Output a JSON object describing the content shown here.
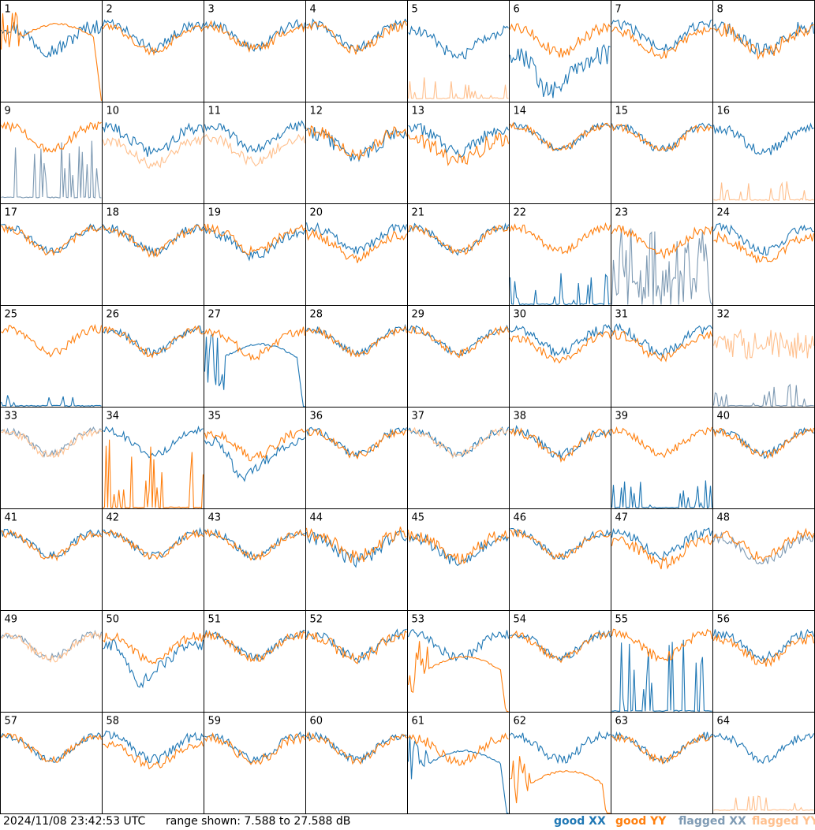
{
  "colors": {
    "good_xx": "#1f77b4",
    "good_yy": "#ff7f0e",
    "flagged_xx": "#7f9bb4",
    "flagged_yy": "#ffc08e",
    "frame": "#000000",
    "background": "#ffffff"
  },
  "footer": {
    "timestamp": "2024/11/08 23:42:53 UTC",
    "range_text": "range shown: 7.588 to 27.588 dB",
    "legend": {
      "good_xx": "good XX",
      "good_yy": "good YY",
      "flagged_xx": "flagged XX",
      "flagged_yy": "flagged YY"
    }
  },
  "chart_data": {
    "type": "line",
    "layout": "small-multiples 8x8",
    "ylim": [
      7.588,
      27.588
    ],
    "yunit": "dB",
    "series_names": [
      "good XX",
      "good YY",
      "flagged XX",
      "flagged YY"
    ],
    "panels": [
      {
        "label": "1",
        "xx": {
          "state": "good",
          "mode": "normal",
          "level": 22.5,
          "noise": 1.5
        },
        "yy": {
          "state": "good",
          "mode": "rolloff",
          "level": 20.5,
          "noise": 0.4
        }
      },
      {
        "label": "2",
        "xx": {
          "state": "good",
          "mode": "normal",
          "level": 23.0,
          "noise": 1.0
        },
        "yy": {
          "state": "good",
          "mode": "normal",
          "level": 22.3,
          "noise": 0.8
        }
      },
      {
        "label": "3",
        "xx": {
          "state": "good",
          "mode": "normal",
          "level": 23.0,
          "noise": 1.0
        },
        "yy": {
          "state": "good",
          "mode": "normal",
          "level": 22.6,
          "noise": 1.0
        }
      },
      {
        "label": "4",
        "xx": {
          "state": "good",
          "mode": "normal",
          "level": 23.0,
          "noise": 1.0
        },
        "yy": {
          "state": "good",
          "mode": "normal",
          "level": 22.6,
          "noise": 1.0
        }
      },
      {
        "label": "5",
        "xx": {
          "state": "good",
          "mode": "normal",
          "level": 21.5,
          "noise": 1.2
        },
        "yy": {
          "state": "flagged",
          "mode": "spikes",
          "level": 8.5,
          "noise": 2.0
        }
      },
      {
        "label": "6",
        "xx": {
          "state": "good",
          "mode": "dip",
          "level": 17.0,
          "noise": 2.0
        },
        "yy": {
          "state": "good",
          "mode": "normal",
          "level": 22.0,
          "noise": 1.2
        }
      },
      {
        "label": "7",
        "xx": {
          "state": "good",
          "mode": "normal",
          "level": 23.0,
          "noise": 1.0
        },
        "yy": {
          "state": "good",
          "mode": "normal",
          "level": 21.5,
          "noise": 1.0
        }
      },
      {
        "label": "8",
        "xx": {
          "state": "good",
          "mode": "normal",
          "level": 22.5,
          "noise": 1.4
        },
        "yy": {
          "state": "good",
          "mode": "normal",
          "level": 22.0,
          "noise": 1.4
        }
      },
      {
        "label": "9",
        "xx": {
          "state": "flagged",
          "mode": "spikes",
          "level": 9.0,
          "noise": 6.0
        },
        "yy": {
          "state": "good",
          "mode": "normal",
          "level": 23.0,
          "noise": 0.9
        }
      },
      {
        "label": "10",
        "xx": {
          "state": "good",
          "mode": "normal",
          "level": 22.5,
          "noise": 1.2
        },
        "yy": {
          "state": "flagged",
          "mode": "normal",
          "level": 20.0,
          "noise": 1.0
        }
      },
      {
        "label": "11",
        "xx": {
          "state": "good",
          "mode": "normal",
          "level": 23.0,
          "noise": 1.0
        },
        "yy": {
          "state": "flagged",
          "mode": "normal",
          "level": 20.5,
          "noise": 1.0
        }
      },
      {
        "label": "12",
        "xx": {
          "state": "good",
          "mode": "normal",
          "level": 21.5,
          "noise": 1.4
        },
        "yy": {
          "state": "good",
          "mode": "normal",
          "level": 22.0,
          "noise": 1.2
        }
      },
      {
        "label": "13",
        "xx": {
          "state": "good",
          "mode": "normal",
          "level": 22.5,
          "noise": 1.2
        },
        "yy": {
          "state": "good",
          "mode": "normal",
          "level": 20.5,
          "noise": 1.6
        }
      },
      {
        "label": "14",
        "xx": {
          "state": "good",
          "mode": "normal",
          "level": 23.0,
          "noise": 0.7
        },
        "yy": {
          "state": "good",
          "mode": "normal",
          "level": 23.0,
          "noise": 0.7
        }
      },
      {
        "label": "15",
        "xx": {
          "state": "good",
          "mode": "normal",
          "level": 23.0,
          "noise": 0.8
        },
        "yy": {
          "state": "good",
          "mode": "normal",
          "level": 22.8,
          "noise": 0.8
        }
      },
      {
        "label": "16",
        "xx": {
          "state": "good",
          "mode": "normal",
          "level": 22.5,
          "noise": 1.0
        },
        "yy": {
          "state": "flagged",
          "mode": "spikes",
          "level": 8.5,
          "noise": 2.0
        }
      },
      {
        "label": "17",
        "xx": {
          "state": "good",
          "mode": "normal",
          "level": 23.0,
          "noise": 0.8
        },
        "yy": {
          "state": "good",
          "mode": "normal",
          "level": 22.8,
          "noise": 0.8
        }
      },
      {
        "label": "18",
        "xx": {
          "state": "good",
          "mode": "normal",
          "level": 22.8,
          "noise": 1.0
        },
        "yy": {
          "state": "good",
          "mode": "normal",
          "level": 22.6,
          "noise": 1.0
        }
      },
      {
        "label": "19",
        "xx": {
          "state": "good",
          "mode": "normal",
          "level": 22.0,
          "noise": 1.0
        },
        "yy": {
          "state": "good",
          "mode": "normal",
          "level": 22.8,
          "noise": 1.0
        }
      },
      {
        "label": "20",
        "xx": {
          "state": "good",
          "mode": "normal",
          "level": 23.0,
          "noise": 1.0
        },
        "yy": {
          "state": "good",
          "mode": "normal",
          "level": 21.5,
          "noise": 1.0
        }
      },
      {
        "label": "21",
        "xx": {
          "state": "good",
          "mode": "normal",
          "level": 23.0,
          "noise": 0.8
        },
        "yy": {
          "state": "good",
          "mode": "normal",
          "level": 22.8,
          "noise": 0.8
        }
      },
      {
        "label": "22",
        "xx": {
          "state": "good",
          "mode": "spikes",
          "level": 8.0,
          "noise": 3.0
        },
        "yy": {
          "state": "good",
          "mode": "normal",
          "level": 23.0,
          "noise": 0.9
        }
      },
      {
        "label": "23",
        "xx": {
          "state": "flagged",
          "mode": "noisy",
          "level": 14.0,
          "noise": 9.0
        },
        "yy": {
          "state": "good",
          "mode": "normal",
          "level": 22.5,
          "noise": 1.0
        }
      },
      {
        "label": "24",
        "xx": {
          "state": "good",
          "mode": "normal",
          "level": 23.0,
          "noise": 1.0
        },
        "yy": {
          "state": "good",
          "mode": "normal",
          "level": 21.0,
          "noise": 1.0
        }
      },
      {
        "label": "25",
        "xx": {
          "state": "good",
          "mode": "spikes",
          "level": 8.0,
          "noise": 1.0
        },
        "yy": {
          "state": "good",
          "mode": "normal",
          "level": 23.0,
          "noise": 0.8
        }
      },
      {
        "label": "26",
        "xx": {
          "state": "good",
          "mode": "normal",
          "level": 23.0,
          "noise": 0.8
        },
        "yy": {
          "state": "good",
          "mode": "normal",
          "level": 22.8,
          "noise": 0.8
        }
      },
      {
        "label": "27",
        "xx": {
          "state": "good",
          "mode": "rolloff",
          "level": 17.5,
          "noise": 0.4
        },
        "yy": {
          "state": "good",
          "mode": "normal",
          "level": 22.5,
          "noise": 1.0
        }
      },
      {
        "label": "28",
        "xx": {
          "state": "good",
          "mode": "normal",
          "level": 23.0,
          "noise": 0.8
        },
        "yy": {
          "state": "good",
          "mode": "normal",
          "level": 22.8,
          "noise": 0.8
        }
      },
      {
        "label": "29",
        "xx": {
          "state": "good",
          "mode": "normal",
          "level": 23.0,
          "noise": 0.8
        },
        "yy": {
          "state": "good",
          "mode": "normal",
          "level": 22.8,
          "noise": 0.8
        }
      },
      {
        "label": "30",
        "xx": {
          "state": "good",
          "mode": "normal",
          "level": 23.0,
          "noise": 1.0
        },
        "yy": {
          "state": "good",
          "mode": "normal",
          "level": 21.5,
          "noise": 1.0
        }
      },
      {
        "label": "31",
        "xx": {
          "state": "good",
          "mode": "normal",
          "level": 23.0,
          "noise": 1.0
        },
        "yy": {
          "state": "good",
          "mode": "normal",
          "level": 21.8,
          "noise": 1.0
        }
      },
      {
        "label": "32",
        "xx": {
          "state": "flagged",
          "mode": "spikes",
          "level": 8.0,
          "noise": 2.0
        },
        "yy": {
          "state": "flagged",
          "mode": "noisy",
          "level": 20.0,
          "noise": 3.0
        }
      },
      {
        "label": "33",
        "xx": {
          "state": "flagged",
          "mode": "normal",
          "level": 23.0,
          "noise": 0.8
        },
        "yy": {
          "state": "flagged",
          "mode": "normal",
          "level": 22.8,
          "noise": 0.8
        }
      },
      {
        "label": "34",
        "xx": {
          "state": "good",
          "mode": "normal",
          "level": 23.0,
          "noise": 0.8
        },
        "yy": {
          "state": "good",
          "mode": "spikes",
          "level": 8.0,
          "noise": 8.0
        }
      },
      {
        "label": "35",
        "xx": {
          "state": "good",
          "mode": "dip",
          "level": 21.0,
          "noise": 1.0
        },
        "yy": {
          "state": "good",
          "mode": "normal",
          "level": 22.5,
          "noise": 1.0
        }
      },
      {
        "label": "36",
        "xx": {
          "state": "good",
          "mode": "normal",
          "level": 23.0,
          "noise": 0.8
        },
        "yy": {
          "state": "good",
          "mode": "normal",
          "level": 22.8,
          "noise": 0.8
        }
      },
      {
        "label": "37",
        "xx": {
          "state": "good",
          "mode": "normal",
          "level": 23.0,
          "noise": 0.8
        },
        "yy": {
          "state": "flagged",
          "mode": "normal",
          "level": 22.8,
          "noise": 0.8
        }
      },
      {
        "label": "38",
        "xx": {
          "state": "good",
          "mode": "normal",
          "level": 23.0,
          "noise": 1.0
        },
        "yy": {
          "state": "good",
          "mode": "normal",
          "level": 22.6,
          "noise": 1.0
        }
      },
      {
        "label": "39",
        "xx": {
          "state": "good",
          "mode": "spikes",
          "level": 8.0,
          "noise": 3.0
        },
        "yy": {
          "state": "good",
          "mode": "normal",
          "level": 23.0,
          "noise": 0.9
        }
      },
      {
        "label": "40",
        "xx": {
          "state": "good",
          "mode": "normal",
          "level": 23.0,
          "noise": 0.8
        },
        "yy": {
          "state": "good",
          "mode": "normal",
          "level": 22.8,
          "noise": 0.8
        }
      },
      {
        "label": "41",
        "xx": {
          "state": "good",
          "mode": "normal",
          "level": 23.0,
          "noise": 0.8
        },
        "yy": {
          "state": "good",
          "mode": "normal",
          "level": 22.8,
          "noise": 0.8
        }
      },
      {
        "label": "42",
        "xx": {
          "state": "good",
          "mode": "normal",
          "level": 23.0,
          "noise": 0.8
        },
        "yy": {
          "state": "good",
          "mode": "normal",
          "level": 22.8,
          "noise": 0.8
        }
      },
      {
        "label": "43",
        "xx": {
          "state": "good",
          "mode": "normal",
          "level": 23.0,
          "noise": 0.8
        },
        "yy": {
          "state": "good",
          "mode": "normal",
          "level": 22.8,
          "noise": 0.8
        }
      },
      {
        "label": "44",
        "xx": {
          "state": "good",
          "mode": "normal",
          "level": 22.0,
          "noise": 1.4
        },
        "yy": {
          "state": "good",
          "mode": "normal",
          "level": 22.8,
          "noise": 1.4
        }
      },
      {
        "label": "45",
        "xx": {
          "state": "good",
          "mode": "normal",
          "level": 22.0,
          "noise": 1.2
        },
        "yy": {
          "state": "good",
          "mode": "normal",
          "level": 22.5,
          "noise": 1.2
        }
      },
      {
        "label": "46",
        "xx": {
          "state": "good",
          "mode": "normal",
          "level": 23.0,
          "noise": 0.8
        },
        "yy": {
          "state": "good",
          "mode": "normal",
          "level": 22.8,
          "noise": 0.8
        }
      },
      {
        "label": "47",
        "xx": {
          "state": "good",
          "mode": "normal",
          "level": 23.0,
          "noise": 1.0
        },
        "yy": {
          "state": "good",
          "mode": "normal",
          "level": 21.5,
          "noise": 1.2
        }
      },
      {
        "label": "48",
        "xx": {
          "state": "flagged",
          "mode": "normal",
          "level": 22.0,
          "noise": 1.0
        },
        "yy": {
          "state": "good",
          "mode": "normal",
          "level": 22.8,
          "noise": 1.0
        }
      },
      {
        "label": "49",
        "xx": {
          "state": "flagged",
          "mode": "normal",
          "level": 23.0,
          "noise": 0.8
        },
        "yy": {
          "state": "flagged",
          "mode": "normal",
          "level": 22.8,
          "noise": 0.8
        }
      },
      {
        "label": "50",
        "xx": {
          "state": "good",
          "mode": "dip",
          "level": 21.0,
          "noise": 1.2
        },
        "yy": {
          "state": "good",
          "mode": "normal",
          "level": 22.5,
          "noise": 1.0
        }
      },
      {
        "label": "51",
        "xx": {
          "state": "good",
          "mode": "normal",
          "level": 23.0,
          "noise": 0.8
        },
        "yy": {
          "state": "good",
          "mode": "normal",
          "level": 22.8,
          "noise": 0.8
        }
      },
      {
        "label": "52",
        "xx": {
          "state": "good",
          "mode": "normal",
          "level": 23.0,
          "noise": 1.0
        },
        "yy": {
          "state": "good",
          "mode": "normal",
          "level": 22.6,
          "noise": 1.2
        }
      },
      {
        "label": "53",
        "xx": {
          "state": "good",
          "mode": "normal",
          "level": 23.0,
          "noise": 1.0
        },
        "yy": {
          "state": "good",
          "mode": "rolloff",
          "level": 16.0,
          "noise": 0.4
        }
      },
      {
        "label": "54",
        "xx": {
          "state": "good",
          "mode": "normal",
          "level": 23.0,
          "noise": 0.8
        },
        "yy": {
          "state": "good",
          "mode": "normal",
          "level": 22.8,
          "noise": 0.8
        }
      },
      {
        "label": "55",
        "xx": {
          "state": "good",
          "mode": "spikes",
          "level": 8.0,
          "noise": 8.0
        },
        "yy": {
          "state": "good",
          "mode": "normal",
          "level": 23.0,
          "noise": 1.0
        }
      },
      {
        "label": "56",
        "xx": {
          "state": "good",
          "mode": "normal",
          "level": 23.0,
          "noise": 1.0
        },
        "yy": {
          "state": "good",
          "mode": "normal",
          "level": 22.0,
          "noise": 1.0
        }
      },
      {
        "label": "57",
        "xx": {
          "state": "good",
          "mode": "normal",
          "level": 23.0,
          "noise": 0.8
        },
        "yy": {
          "state": "good",
          "mode": "normal",
          "level": 22.8,
          "noise": 0.8
        }
      },
      {
        "label": "58",
        "xx": {
          "state": "good",
          "mode": "normal",
          "level": 23.0,
          "noise": 1.0
        },
        "yy": {
          "state": "good",
          "mode": "normal",
          "level": 21.5,
          "noise": 1.0
        }
      },
      {
        "label": "59",
        "xx": {
          "state": "good",
          "mode": "normal",
          "level": 23.0,
          "noise": 0.8
        },
        "yy": {
          "state": "good",
          "mode": "normal",
          "level": 22.6,
          "noise": 1.0
        }
      },
      {
        "label": "60",
        "xx": {
          "state": "good",
          "mode": "normal",
          "level": 23.0,
          "noise": 0.8
        },
        "yy": {
          "state": "good",
          "mode": "normal",
          "level": 22.8,
          "noise": 0.8
        }
      },
      {
        "label": "61",
        "xx": {
          "state": "good",
          "mode": "rolloff",
          "level": 17.5,
          "noise": 0.4
        },
        "yy": {
          "state": "good",
          "mode": "normal",
          "level": 22.5,
          "noise": 1.0
        }
      },
      {
        "label": "62",
        "xx": {
          "state": "good",
          "mode": "normal",
          "level": 23.0,
          "noise": 1.0
        },
        "yy": {
          "state": "good",
          "mode": "rolloff",
          "level": 13.5,
          "noise": 0.4
        }
      },
      {
        "label": "63",
        "xx": {
          "state": "good",
          "mode": "normal",
          "level": 23.0,
          "noise": 0.8
        },
        "yy": {
          "state": "good",
          "mode": "normal",
          "level": 22.8,
          "noise": 0.8
        }
      },
      {
        "label": "64",
        "xx": {
          "state": "good",
          "mode": "normal",
          "level": 23.0,
          "noise": 0.8
        },
        "yy": {
          "state": "flagged",
          "mode": "spikes",
          "level": 8.5,
          "noise": 2.0
        }
      }
    ]
  }
}
